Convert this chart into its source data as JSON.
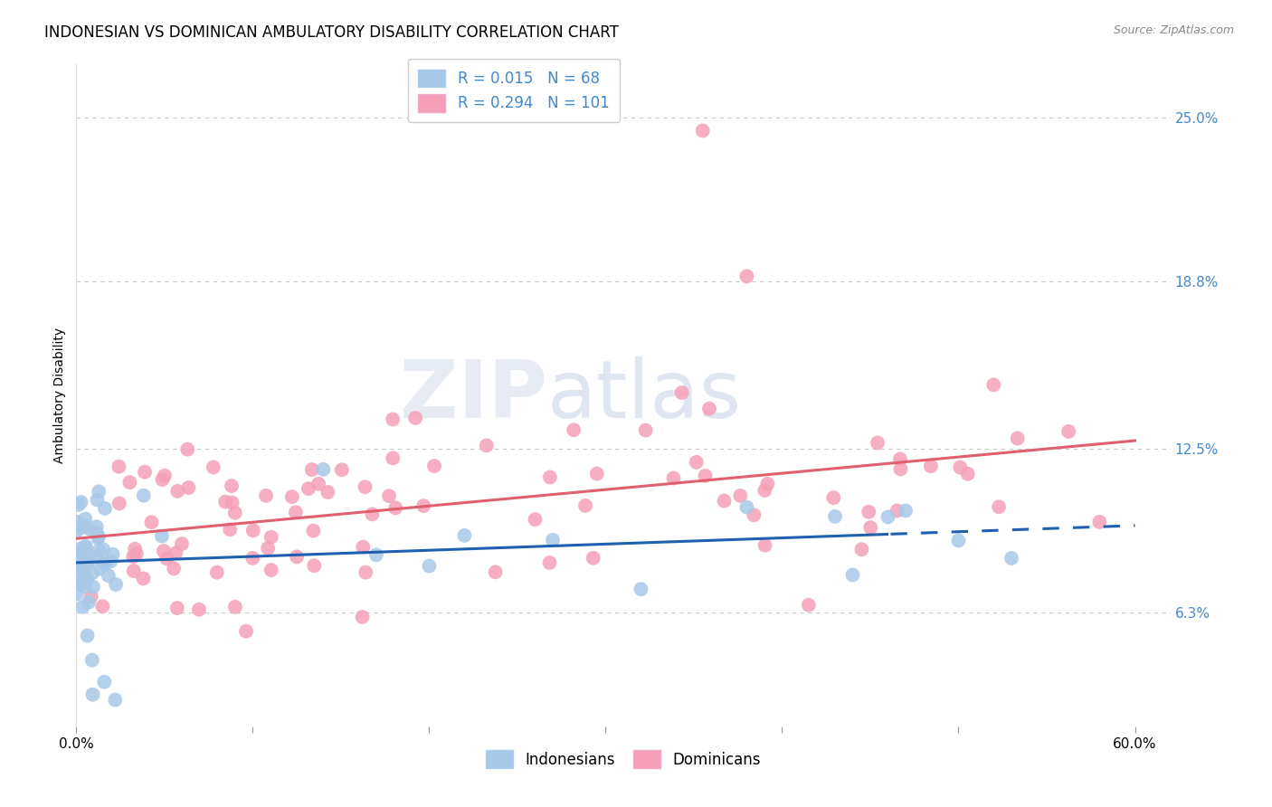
{
  "title": "INDONESIAN VS DOMINICAN AMBULATORY DISABILITY CORRELATION CHART",
  "source": "Source: ZipAtlas.com",
  "ylabel": "Ambulatory Disability",
  "ytick_labels": [
    "6.3%",
    "12.5%",
    "18.8%",
    "25.0%"
  ],
  "ytick_values": [
    0.063,
    0.125,
    0.188,
    0.25
  ],
  "xlim": [
    0.0,
    0.62
  ],
  "ylim": [
    0.02,
    0.27
  ],
  "legend_r_indo": "0.015",
  "legend_n_indo": "68",
  "legend_r_dom": "0.294",
  "legend_n_dom": "101",
  "indonesian_color": "#a8c8e8",
  "dominican_color": "#f5a0b8",
  "indonesian_line_color": "#2060b0",
  "dominican_line_color": "#e06070",
  "watermark_zip": "ZIP",
  "watermark_atlas": "atlas",
  "background_color": "#ffffff",
  "grid_color": "#c8c8c8",
  "title_fontsize": 12,
  "axis_label_fontsize": 10,
  "tick_label_fontsize": 10,
  "tick_color": "#4488cc",
  "source_color": "#888888"
}
